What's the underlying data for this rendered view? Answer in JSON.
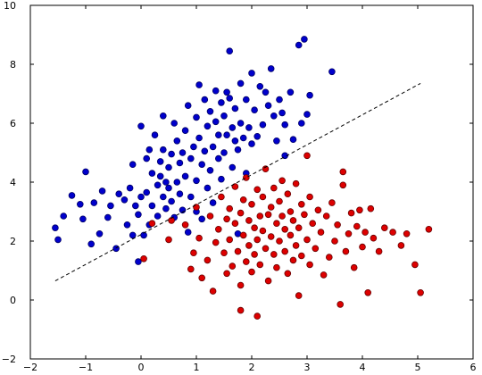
{
  "chart_data": {
    "type": "scatter",
    "title": "",
    "xlabel": "",
    "ylabel": "",
    "xlim": [
      -2,
      6
    ],
    "ylim": [
      -2,
      10
    ],
    "xticks": [
      -2,
      -1,
      0,
      1,
      2,
      3,
      4,
      5,
      6
    ],
    "yticks": [
      -2,
      0,
      2,
      4,
      6,
      8,
      10
    ],
    "grid": false,
    "legend": "none",
    "series": [
      {
        "color": "#0000cc",
        "edge_color": "#000066",
        "points": [
          [
            -1.55,
            2.45
          ],
          [
            -1.5,
            2.05
          ],
          [
            -1.4,
            2.85
          ],
          [
            -1.25,
            3.55
          ],
          [
            -1.1,
            3.25
          ],
          [
            -1.05,
            2.75
          ],
          [
            -1.0,
            4.35
          ],
          [
            -0.9,
            1.9
          ],
          [
            -0.85,
            3.3
          ],
          [
            -0.75,
            2.25
          ],
          [
            -0.7,
            3.7
          ],
          [
            -0.6,
            2.8
          ],
          [
            -0.55,
            3.2
          ],
          [
            -0.45,
            1.75
          ],
          [
            -0.4,
            3.6
          ],
          [
            -0.3,
            3.4
          ],
          [
            -0.25,
            2.55
          ],
          [
            -0.2,
            3.8
          ],
          [
            -0.15,
            2.2
          ],
          [
            -0.15,
            4.6
          ],
          [
            -0.1,
            3.2
          ],
          [
            -0.05,
            1.3
          ],
          [
            -0.05,
            2.9
          ],
          [
            0.0,
            5.9
          ],
          [
            0.0,
            3.5
          ],
          [
            0.05,
            2.2
          ],
          [
            0.1,
            3.65
          ],
          [
            0.1,
            4.8
          ],
          [
            0.15,
            5.1
          ],
          [
            0.15,
            2.55
          ],
          [
            0.2,
            4.3
          ],
          [
            0.2,
            3.2
          ],
          [
            0.25,
            5.6
          ],
          [
            0.3,
            3.9
          ],
          [
            0.3,
            2.85
          ],
          [
            0.35,
            4.2
          ],
          [
            0.35,
            4.7
          ],
          [
            0.4,
            3.5
          ],
          [
            0.4,
            5.1
          ],
          [
            0.45,
            4.0
          ],
          [
            0.4,
            6.25
          ],
          [
            0.45,
            3.1
          ],
          [
            0.5,
            3.8
          ],
          [
            0.5,
            4.5
          ],
          [
            0.55,
            4.95
          ],
          [
            0.55,
            3.35
          ],
          [
            0.6,
            6.0
          ],
          [
            0.6,
            2.8
          ],
          [
            0.65,
            5.4
          ],
          [
            0.65,
            4.0
          ],
          [
            0.7,
            4.65
          ],
          [
            0.7,
            3.6
          ],
          [
            0.75,
            5.0
          ],
          [
            0.75,
            3.05
          ],
          [
            0.8,
            5.75
          ],
          [
            0.8,
            4.2
          ],
          [
            0.85,
            2.3
          ],
          [
            0.85,
            6.6
          ],
          [
            0.9,
            4.8
          ],
          [
            0.9,
            3.5
          ],
          [
            0.95,
            5.2
          ],
          [
            1.0,
            6.2
          ],
          [
            1.0,
            4.05
          ],
          [
            1.0,
            3.0
          ],
          [
            1.05,
            5.5
          ],
          [
            1.05,
            7.3
          ],
          [
            1.1,
            4.6
          ],
          [
            1.1,
            2.75
          ],
          [
            1.15,
            6.8
          ],
          [
            1.15,
            5.05
          ],
          [
            1.2,
            3.8
          ],
          [
            1.2,
            5.9
          ],
          [
            1.25,
            4.4
          ],
          [
            1.25,
            6.4
          ],
          [
            1.3,
            3.3
          ],
          [
            1.3,
            5.2
          ],
          [
            1.35,
            6.05
          ],
          [
            1.35,
            7.1
          ],
          [
            1.4,
            4.8
          ],
          [
            1.4,
            5.6
          ],
          [
            1.45,
            6.7
          ],
          [
            1.45,
            4.1
          ],
          [
            1.5,
            5.0
          ],
          [
            1.5,
            6.25
          ],
          [
            1.55,
            7.05
          ],
          [
            1.55,
            5.6
          ],
          [
            1.6,
            8.45
          ],
          [
            1.6,
            6.85
          ],
          [
            1.65,
            4.5
          ],
          [
            1.65,
            5.85
          ],
          [
            1.7,
            5.4
          ],
          [
            1.7,
            6.5
          ],
          [
            1.75,
            5.1
          ],
          [
            1.8,
            6.0
          ],
          [
            1.8,
            7.35
          ],
          [
            1.85,
            5.5
          ],
          [
            1.9,
            6.8
          ],
          [
            1.9,
            4.3
          ],
          [
            1.95,
            5.85
          ],
          [
            2.0,
            5.3
          ],
          [
            2.0,
            7.7
          ],
          [
            2.05,
            6.45
          ],
          [
            2.1,
            5.55
          ],
          [
            2.15,
            7.25
          ],
          [
            2.2,
            5.95
          ],
          [
            2.25,
            7.05
          ],
          [
            2.3,
            6.6
          ],
          [
            2.35,
            7.85
          ],
          [
            2.4,
            6.25
          ],
          [
            2.45,
            5.4
          ],
          [
            2.5,
            6.8
          ],
          [
            2.55,
            6.35
          ],
          [
            2.6,
            4.9
          ],
          [
            2.6,
            5.95
          ],
          [
            2.7,
            7.05
          ],
          [
            2.75,
            5.45
          ],
          [
            2.85,
            8.65
          ],
          [
            2.9,
            6.0
          ],
          [
            2.95,
            8.85
          ],
          [
            3.0,
            6.3
          ],
          [
            3.05,
            6.95
          ],
          [
            3.45,
            7.75
          ],
          [
            1.75,
            2.25
          ]
        ]
      },
      {
        "color": "#dd0000",
        "edge_color": "#660000",
        "points": [
          [
            0.05,
            1.4
          ],
          [
            0.2,
            2.6
          ],
          [
            0.5,
            2.05
          ],
          [
            0.8,
            2.55
          ],
          [
            0.9,
            1.05
          ],
          [
            0.95,
            1.6
          ],
          [
            1.0,
            3.15
          ],
          [
            1.05,
            2.1
          ],
          [
            1.1,
            0.75
          ],
          [
            1.2,
            1.35
          ],
          [
            1.25,
            2.85
          ],
          [
            1.3,
            0.3
          ],
          [
            1.35,
            1.95
          ],
          [
            1.4,
            2.4
          ],
          [
            1.45,
            3.5
          ],
          [
            1.5,
            1.6
          ],
          [
            1.55,
            2.75
          ],
          [
            1.55,
            0.9
          ],
          [
            1.6,
            3.1
          ],
          [
            1.6,
            2.05
          ],
          [
            1.65,
            1.15
          ],
          [
            1.7,
            2.6
          ],
          [
            1.7,
            3.85
          ],
          [
            1.75,
            1.65
          ],
          [
            1.8,
            2.95
          ],
          [
            1.8,
            0.5
          ],
          [
            1.85,
            2.2
          ],
          [
            1.85,
            3.4
          ],
          [
            1.9,
            1.3
          ],
          [
            1.9,
            4.15
          ],
          [
            1.95,
            2.7
          ],
          [
            1.95,
            1.85
          ],
          [
            2.0,
            3.25
          ],
          [
            2.0,
            0.95
          ],
          [
            2.05,
            2.45
          ],
          [
            2.05,
            1.55
          ],
          [
            2.1,
            3.75
          ],
          [
            2.1,
            2.05
          ],
          [
            2.15,
            2.85
          ],
          [
            2.15,
            1.2
          ],
          [
            2.2,
            3.5
          ],
          [
            2.2,
            2.35
          ],
          [
            2.25,
            1.75
          ],
          [
            2.25,
            4.45
          ],
          [
            2.3,
            2.9
          ],
          [
            2.3,
            0.65
          ],
          [
            2.35,
            3.15
          ],
          [
            2.35,
            2.15
          ],
          [
            2.4,
            1.55
          ],
          [
            2.4,
            3.8
          ],
          [
            2.45,
            2.6
          ],
          [
            2.45,
            1.1
          ],
          [
            2.5,
            3.35
          ],
          [
            2.5,
            2.0
          ],
          [
            2.55,
            2.85
          ],
          [
            2.55,
            4.05
          ],
          [
            2.6,
            1.65
          ],
          [
            2.6,
            2.4
          ],
          [
            2.65,
            3.6
          ],
          [
            2.65,
            0.9
          ],
          [
            2.7,
            2.2
          ],
          [
            2.7,
            3.0
          ],
          [
            2.75,
            1.35
          ],
          [
            2.75,
            2.7
          ],
          [
            2.8,
            3.95
          ],
          [
            2.8,
            1.85
          ],
          [
            2.85,
            2.45
          ],
          [
            2.85,
            0.15
          ],
          [
            2.9,
            3.25
          ],
          [
            2.9,
            1.5
          ],
          [
            2.95,
            2.9
          ],
          [
            3.0,
            2.05
          ],
          [
            3.0,
            4.9
          ],
          [
            3.05,
            3.5
          ],
          [
            3.05,
            1.2
          ],
          [
            3.1,
            2.6
          ],
          [
            3.15,
            1.75
          ],
          [
            3.2,
            3.05
          ],
          [
            3.25,
            2.3
          ],
          [
            3.3,
            0.85
          ],
          [
            3.35,
            2.85
          ],
          [
            3.4,
            1.45
          ],
          [
            3.45,
            3.3
          ],
          [
            3.5,
            2.0
          ],
          [
            3.55,
            2.55
          ],
          [
            3.6,
            -0.15
          ],
          [
            3.65,
            3.9
          ],
          [
            3.7,
            1.65
          ],
          [
            3.75,
            2.25
          ],
          [
            3.8,
            2.95
          ],
          [
            3.85,
            1.1
          ],
          [
            3.9,
            2.5
          ],
          [
            3.95,
            3.05
          ],
          [
            4.0,
            1.8
          ],
          [
            4.05,
            2.3
          ],
          [
            4.1,
            0.25
          ],
          [
            4.15,
            3.1
          ],
          [
            4.2,
            2.1
          ],
          [
            4.3,
            1.65
          ],
          [
            4.4,
            2.45
          ],
          [
            4.55,
            2.3
          ],
          [
            4.7,
            1.85
          ],
          [
            4.8,
            2.25
          ],
          [
            4.95,
            1.2
          ],
          [
            5.05,
            0.25
          ],
          [
            5.2,
            2.4
          ],
          [
            1.8,
            -0.35
          ],
          [
            2.1,
            -0.55
          ],
          [
            3.65,
            4.35
          ],
          [
            0.55,
            2.7
          ]
        ]
      }
    ],
    "annotations": [
      {
        "type": "line",
        "style": "dashed",
        "color": "#000000",
        "from": [
          -1.55,
          0.65
        ],
        "to": [
          5.05,
          7.35
        ]
      }
    ]
  }
}
